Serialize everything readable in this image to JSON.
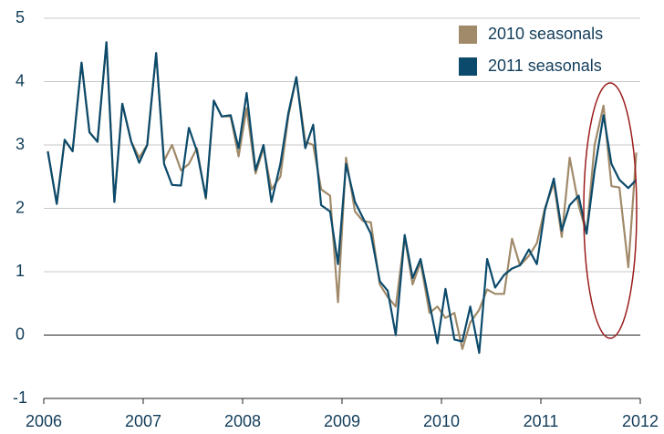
{
  "chart_data": {
    "type": "line",
    "x": [
      2006.04,
      2006.13,
      2006.21,
      2006.29,
      2006.38,
      2006.46,
      2006.54,
      2006.63,
      2006.71,
      2006.79,
      2006.88,
      2006.96,
      2007.04,
      2007.13,
      2007.21,
      2007.29,
      2007.38,
      2007.46,
      2007.54,
      2007.63,
      2007.71,
      2007.79,
      2007.88,
      2007.96,
      2008.04,
      2008.13,
      2008.21,
      2008.29,
      2008.38,
      2008.46,
      2008.54,
      2008.63,
      2008.71,
      2008.79,
      2008.88,
      2008.96,
      2009.04,
      2009.13,
      2009.21,
      2009.29,
      2009.38,
      2009.46,
      2009.54,
      2009.63,
      2009.71,
      2009.79,
      2009.88,
      2009.96,
      2010.04,
      2010.13,
      2010.21,
      2010.29,
      2010.38,
      2010.46,
      2010.54,
      2010.63,
      2010.71,
      2010.79,
      2010.88,
      2010.96,
      2011.04,
      2011.13,
      2011.21,
      2011.29,
      2011.38,
      2011.46,
      2011.54,
      2011.63,
      2011.71,
      2011.79,
      2011.88,
      2011.96
    ],
    "series": [
      {
        "name": "2010 seasonals",
        "color": "#a08a6a",
        "values": [
          2.9,
          2.07,
          3.08,
          2.9,
          4.3,
          3.2,
          3.05,
          4.62,
          2.1,
          3.65,
          3.05,
          2.8,
          3.0,
          4.45,
          2.75,
          3.0,
          2.6,
          2.7,
          2.95,
          2.15,
          3.7,
          3.45,
          3.45,
          2.82,
          3.58,
          2.55,
          2.95,
          2.3,
          2.5,
          3.45,
          4.07,
          3.05,
          3.0,
          2.3,
          2.2,
          0.52,
          2.8,
          1.95,
          1.8,
          1.78,
          0.8,
          0.6,
          0.45,
          1.55,
          0.8,
          1.15,
          0.35,
          0.45,
          0.27,
          0.35,
          -0.22,
          0.2,
          0.4,
          0.72,
          0.65,
          0.65,
          1.52,
          1.1,
          1.25,
          1.45,
          2.0,
          2.4,
          1.55,
          2.8,
          2.05,
          1.6,
          3.0,
          3.62,
          2.35,
          2.33,
          1.07,
          2.88
        ]
      },
      {
        "name": "2011 seasonals",
        "color": "#0b4a6b",
        "values": [
          2.9,
          2.07,
          3.08,
          2.9,
          4.3,
          3.2,
          3.05,
          4.62,
          2.1,
          3.65,
          3.05,
          2.72,
          3.0,
          4.45,
          2.7,
          2.37,
          2.36,
          3.27,
          2.9,
          2.17,
          3.7,
          3.45,
          3.47,
          2.95,
          3.82,
          2.6,
          3.0,
          2.1,
          2.7,
          3.5,
          4.07,
          2.95,
          3.32,
          2.05,
          1.95,
          1.12,
          2.7,
          2.1,
          1.85,
          1.6,
          0.85,
          0.7,
          0.0,
          1.58,
          0.9,
          1.2,
          0.5,
          -0.13,
          0.73,
          -0.07,
          -0.1,
          0.45,
          -0.28,
          1.2,
          0.75,
          0.95,
          1.05,
          1.1,
          1.35,
          1.12,
          1.97,
          2.47,
          1.65,
          2.05,
          2.2,
          1.6,
          2.6,
          3.47,
          2.7,
          2.45,
          2.32,
          2.45
        ]
      }
    ],
    "xlim": [
      2006,
      2012
    ],
    "xticks": [
      2006,
      2007,
      2008,
      2009,
      2010,
      2011,
      2012
    ],
    "ylim": [
      -1,
      5
    ],
    "yticks": [
      -1,
      0,
      1,
      2,
      3,
      4,
      5
    ],
    "grid": true
  }
}
